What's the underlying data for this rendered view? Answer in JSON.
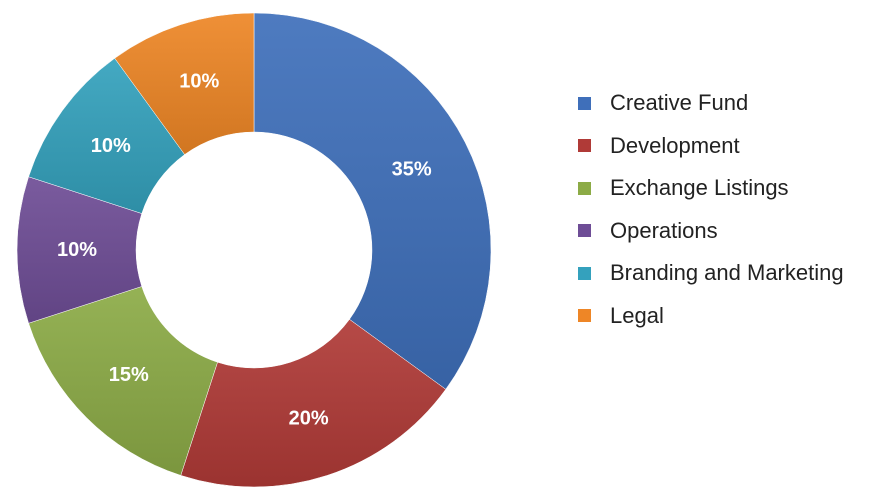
{
  "chart_data": {
    "type": "pie",
    "variant": "donut",
    "categories": [
      "Creative Fund",
      "Development",
      "Exchange Listings",
      "Operations",
      "Branding and Marketing",
      "Legal"
    ],
    "values": [
      35,
      20,
      15,
      10,
      10,
      10
    ],
    "labels": [
      "35%",
      "20%",
      "15%",
      "10%",
      "10%",
      "10%"
    ],
    "colors": [
      "#3f6fba",
      "#b03a37",
      "#8cab46",
      "#6e4d96",
      "#34a1bd",
      "#ee8626"
    ],
    "legend_position": "right"
  }
}
